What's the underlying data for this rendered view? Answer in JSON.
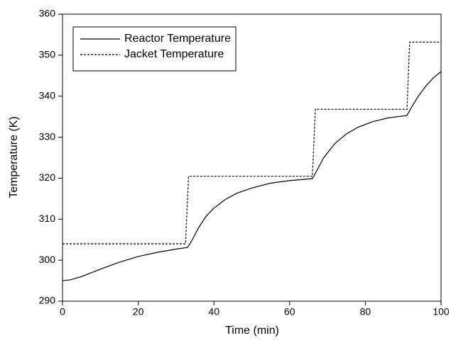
{
  "chart_data": {
    "type": "line",
    "xlabel": "Time (min)",
    "ylabel": "Temperature (K)",
    "xlim": [
      0,
      100
    ],
    "xticks": [
      0,
      20,
      40,
      60,
      80,
      100
    ],
    "ylim": [
      290,
      360
    ],
    "yticks": [
      290,
      300,
      310,
      320,
      330,
      340,
      350,
      360
    ],
    "legend": "upper left",
    "series": [
      {
        "name": "Reactor Temperature",
        "color": "#000000",
        "style": "solid",
        "x": [
          0,
          2,
          5,
          10,
          15,
          20,
          25,
          30,
          33,
          34,
          36,
          38,
          40,
          43,
          46,
          50,
          55,
          60,
          66,
          67,
          69,
          72,
          75,
          78,
          82,
          86,
          91,
          92,
          94,
          96,
          98,
          100
        ],
        "values": [
          295,
          295.2,
          296,
          297.8,
          299.5,
          300.9,
          301.9,
          302.7,
          303.1,
          304.5,
          308,
          310.8,
          312.7,
          314.8,
          316.3,
          317.6,
          318.8,
          319.4,
          319.9,
          321.5,
          325,
          328.5,
          330.8,
          332.4,
          333.8,
          334.7,
          335.3,
          337,
          340,
          342.5,
          344.5,
          346
        ]
      },
      {
        "name": "Jacket Temperature",
        "color": "#000000",
        "style": "dashed",
        "x": [
          0,
          32.5,
          33.3,
          66,
          66.8,
          91,
          91.7,
          100
        ],
        "values": [
          304,
          304,
          320.5,
          320.5,
          336.8,
          336.8,
          353.2,
          353.2
        ]
      }
    ]
  }
}
